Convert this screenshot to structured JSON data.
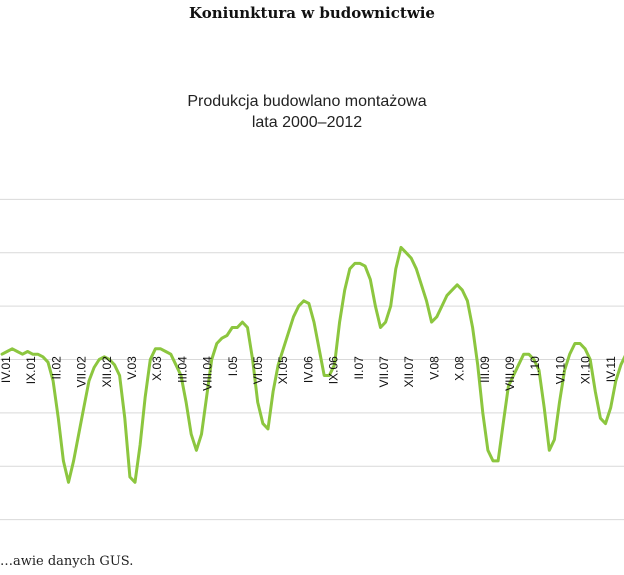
{
  "page": {
    "header": "Koniunktura w budownictwie",
    "footer": "…awie danych GUS."
  },
  "colors": {
    "line": "#8cc63f",
    "grid": "#d9d9d9"
  },
  "chart_data": {
    "type": "line",
    "title": "Produkcja budowlano montażowa",
    "subtitle": "lata 2000–2012",
    "xlabel": "",
    "ylabel": "",
    "grid": true,
    "legend": "none",
    "x_ticks": [
      "IV.01",
      "IX.01",
      "II.02",
      "VII.02",
      "XII.02",
      "V.03",
      "X.03",
      "III.04",
      "VIII.04",
      "I.05",
      "VI.05",
      "XI.05",
      "IV.06",
      "IX.06",
      "II.07",
      "VII.07",
      "XII.07",
      "V.08",
      "X.08",
      "III.09",
      "VIII.09",
      "I.10",
      "VI.10",
      "XI.10",
      "IV.11"
    ],
    "series": [
      {
        "values": [
          12,
          13,
          14,
          13,
          12,
          13,
          12,
          12,
          11,
          9,
          2,
          -12,
          -28,
          -36,
          -28,
          -18,
          -8,
          2,
          7,
          10,
          11,
          10,
          8,
          4,
          -12,
          -34,
          -36,
          -22,
          -4,
          10,
          14,
          14,
          13,
          12,
          8,
          4,
          -6,
          -18,
          -24,
          -18,
          -4,
          10,
          16,
          18,
          19,
          22,
          22,
          24,
          22,
          10,
          -6,
          -14,
          -16,
          -2,
          8,
          14,
          20,
          26,
          30,
          32,
          31,
          24,
          14,
          4,
          4,
          8,
          24,
          36,
          44,
          46,
          46,
          45,
          40,
          30,
          22,
          24,
          30,
          44,
          52,
          50,
          48,
          44,
          38,
          32,
          24,
          26,
          30,
          34,
          36,
          38,
          36,
          32,
          22,
          8,
          -10,
          -24,
          -28,
          -28,
          -14,
          0,
          4,
          8,
          12,
          12,
          10,
          6,
          -8,
          -24,
          -20,
          -6,
          6,
          12,
          16,
          16,
          14,
          10,
          -2,
          -12,
          -14,
          -8,
          2,
          8,
          12
        ]
      }
    ],
    "ylim": [
      -52,
      78
    ]
  }
}
